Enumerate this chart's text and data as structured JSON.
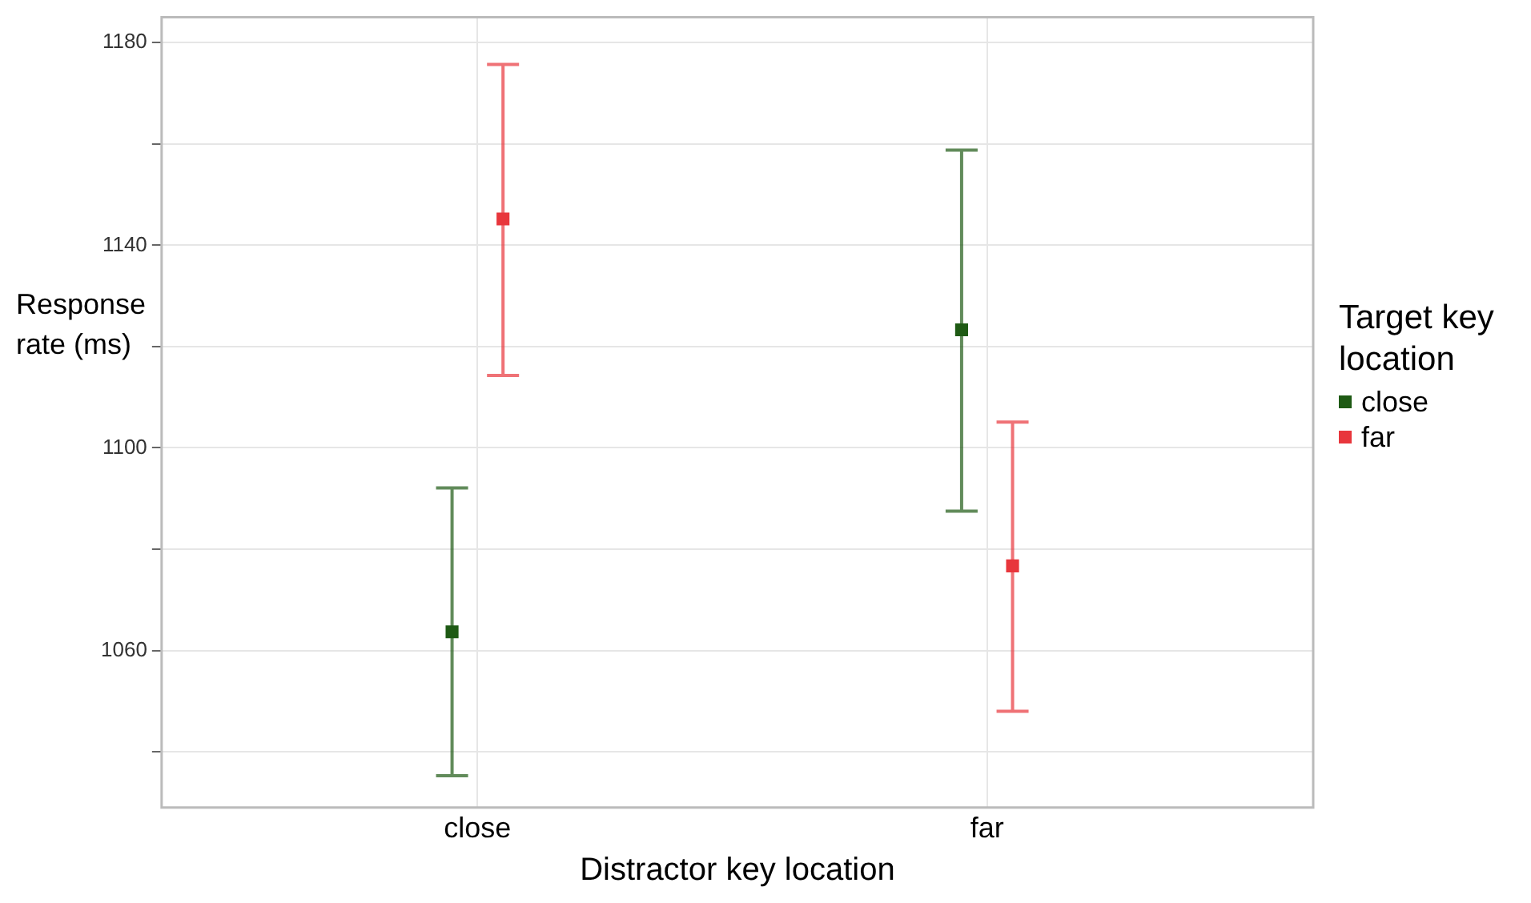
{
  "chart_data": {
    "type": "scatter",
    "xlabel": "Distractor key location",
    "ylabel": "Response rate (ms)",
    "legend_title": "Target key location",
    "legend": "right",
    "grid": true,
    "marker": "square",
    "categories": [
      "close",
      "far"
    ],
    "ylim": [
      1029,
      1185
    ],
    "yticks": [
      {
        "value": 1040,
        "label": null
      },
      1060,
      {
        "value": 1080,
        "label": null
      },
      1100,
      {
        "value": 1120,
        "label": null
      },
      1140,
      {
        "value": 1160,
        "label": null
      },
      1180
    ],
    "series": [
      {
        "name": "close",
        "color": "#1e5a14",
        "values": [
          1063.7,
          1123.3
        ],
        "errors": [
          [
            1035.3,
            1092.1
          ],
          [
            1087.5,
            1158.8
          ]
        ]
      },
      {
        "name": "far",
        "color": "#e8363c",
        "values": [
          1145.2,
          1076.7
        ],
        "errors": [
          [
            1114.3,
            1175.7
          ],
          [
            1048,
            1105.1
          ]
        ]
      }
    ]
  }
}
